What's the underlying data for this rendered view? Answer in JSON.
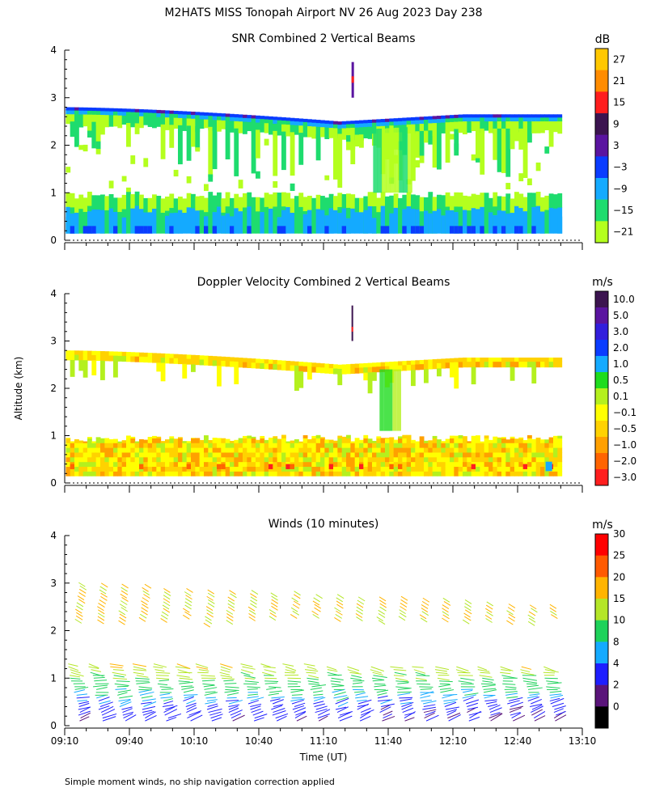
{
  "figure": {
    "title": "M2HATS MISS Tonopah Airport NV  26 Aug 2023 Day 238",
    "ylabel": "Altitude (km)",
    "xlabel": "Time (UT)",
    "footnote": "Simple moment winds, no ship navigation correction applied"
  },
  "chart_data": [
    {
      "type": "heatmap",
      "id": "snr",
      "title": "SNR Combined 2 Vertical Beams",
      "ylabel": "Altitude (km)",
      "ylim": [
        0,
        4
      ],
      "yticks": [
        "0",
        "1",
        "2",
        "3",
        "4"
      ],
      "xlim": [
        "09:10",
        "13:10"
      ],
      "xticks": [
        "09:10",
        "09:40",
        "10:10",
        "10:40",
        "11:10",
        "11:40",
        "12:10",
        "12:40",
        "13:10"
      ],
      "show_xtick_labels": false,
      "colorbar": {
        "unit": "dB",
        "labels": [
          "27",
          "21",
          "15",
          "9",
          "3",
          "−3",
          "−9",
          "−15",
          "−21"
        ],
        "colors": [
          "#ffc800",
          "#ff8c00",
          "#ff1e1e",
          "#3c1450",
          "#5a14a0",
          "#0a3cff",
          "#14aaff",
          "#1edc6e",
          "#b4ff1e"
        ]
      },
      "features": {
        "top_layer_km_start": 2.8,
        "top_layer_km_min": 2.5,
        "top_layer_km_end": 2.65,
        "boundary_layer_top_km": 0.95,
        "surface_band_km": 0.15,
        "spike_time": "11:23",
        "spike_range_km": [
          3.0,
          3.75
        ]
      }
    },
    {
      "type": "heatmap",
      "id": "doppler",
      "title": "Doppler Velocity Combined 2 Vertical Beams",
      "ylabel": "Altitude (km)",
      "ylim": [
        0,
        4
      ],
      "yticks": [
        "0",
        "1",
        "2",
        "3",
        "4"
      ],
      "xlim": [
        "09:10",
        "13:10"
      ],
      "xticks": [
        "09:10",
        "09:40",
        "10:10",
        "10:40",
        "11:10",
        "11:40",
        "12:10",
        "12:40",
        "13:10"
      ],
      "show_xtick_labels": false,
      "colorbar": {
        "unit": "m/s",
        "labels": [
          "10.0",
          "5.0",
          "3.0",
          "2.0",
          "1.0",
          "0.5",
          "0.1",
          "−0.1",
          "−0.5",
          "−1.0",
          "−2.0",
          "−3.0"
        ],
        "colors": [
          "#3c1450",
          "#5a14a0",
          "#321edc",
          "#0a3cff",
          "#14aaff",
          "#1edc1e",
          "#b4f01e",
          "#ffff00",
          "#ffd200",
          "#ffa000",
          "#ff6400",
          "#ff1e1e"
        ]
      }
    },
    {
      "type": "wind_barbs",
      "id": "winds",
      "title": "Winds (10 minutes)",
      "ylabel": "Altitude (km)",
      "ylim": [
        0,
        4
      ],
      "yticks": [
        "0",
        "1",
        "2",
        "3",
        "4"
      ],
      "xlim": [
        "09:10",
        "13:10"
      ],
      "xticks": [
        "09:10",
        "09:40",
        "10:10",
        "10:40",
        "11:10",
        "11:40",
        "12:10",
        "12:40",
        "13:10"
      ],
      "show_xtick_labels": true,
      "xlabel": "Time (UT)",
      "colorbar": {
        "unit": "m/s",
        "labels": [
          "30",
          "25",
          "20",
          "15",
          "10",
          "8",
          "4",
          "2",
          "0"
        ],
        "colors": [
          "#ff0000",
          "#ff5a00",
          "#ffb400",
          "#b4e628",
          "#1ed25a",
          "#14aaff",
          "#1e1eff",
          "#5a147a",
          "#000000"
        ]
      },
      "profile_interval_min": 10
    }
  ]
}
